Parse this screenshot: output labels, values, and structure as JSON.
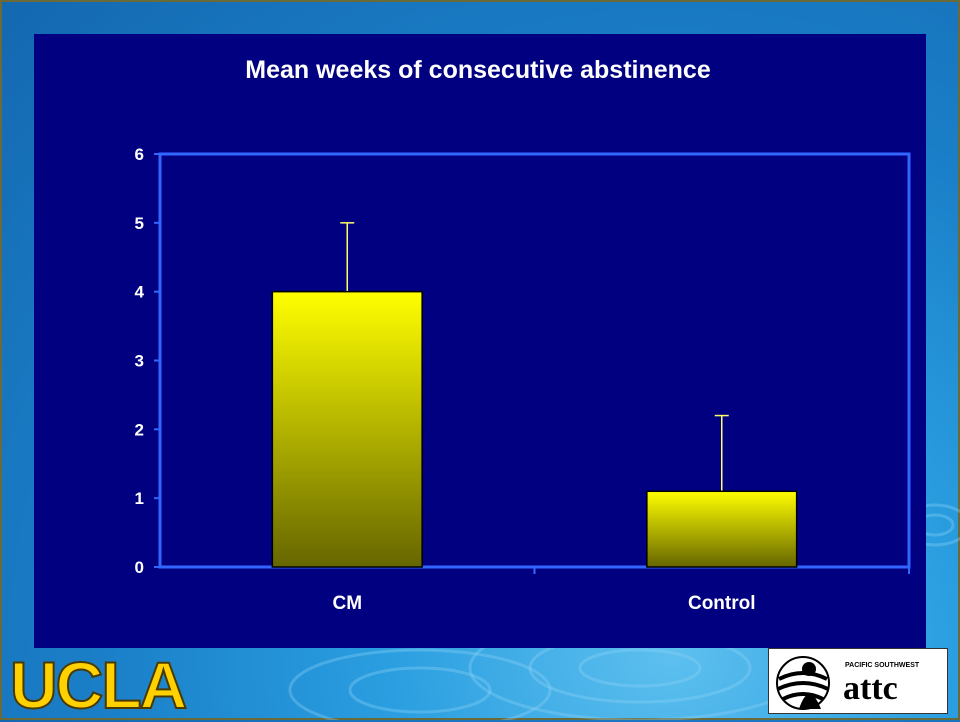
{
  "chart_data": {
    "type": "bar",
    "title": "Mean weeks of consecutive abstinence",
    "categories": [
      "CM",
      "Control"
    ],
    "values": [
      4.0,
      1.1
    ],
    "error_upper": [
      5.0,
      2.2
    ],
    "ylim": [
      0,
      6
    ],
    "yticks": [
      0,
      1,
      2,
      3,
      4,
      5,
      6
    ],
    "xlabel": "",
    "ylabel": "",
    "grid": false,
    "legend": "none"
  },
  "colors": {
    "panel": "#000080",
    "axis": "#3366ff",
    "bar_top": "#ffff00",
    "bar_bottom": "#666600",
    "error_bar": "#ffff66",
    "text": "#ffffff",
    "ucla_gold": "#ffd100"
  },
  "logos": {
    "ucla": "UCLA",
    "attc_small": "PACIFIC SOUTHWEST",
    "attc_main": "attc"
  }
}
